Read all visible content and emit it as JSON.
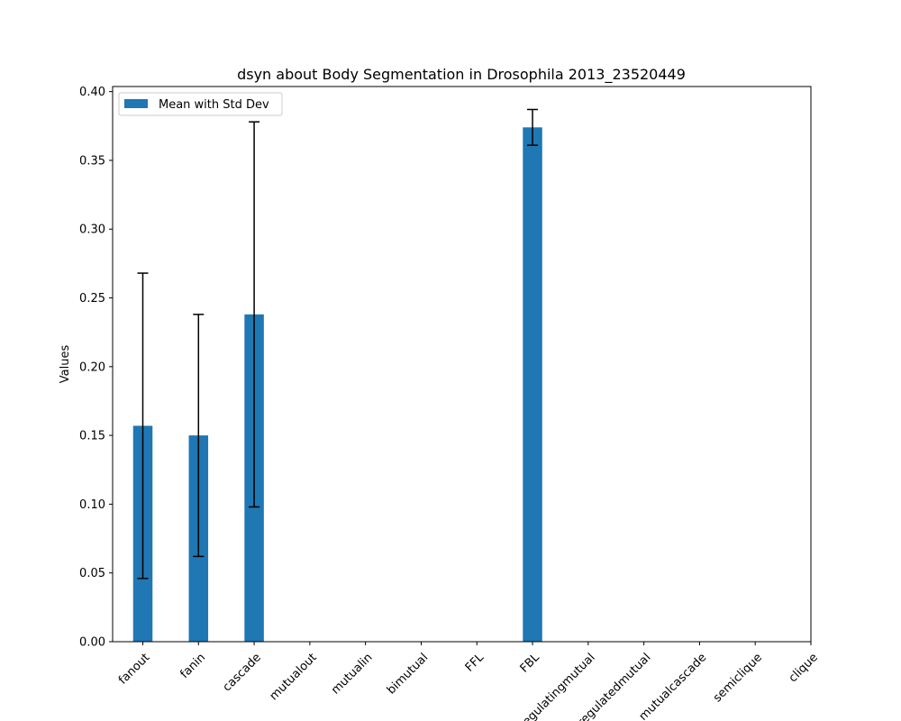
{
  "chart_data": {
    "type": "bar",
    "title": "dsyn about Body Segmentation in Drosophila 2013_23520449",
    "xlabel": "",
    "ylabel": "Values",
    "ylim": [
      0,
      0.4037
    ],
    "yticks": [
      0.0,
      0.05,
      0.1,
      0.15,
      0.2,
      0.25,
      0.3,
      0.35,
      0.4
    ],
    "ytick_labels": [
      "0.00",
      "0.05",
      "0.10",
      "0.15",
      "0.20",
      "0.25",
      "0.30",
      "0.35",
      "0.40"
    ],
    "categories": [
      "fanout",
      "fanin",
      "cascade",
      "mutualout",
      "mutualin",
      "bimutual",
      "FFL",
      "FBL",
      "regulatingmutual",
      "regulatedmutual",
      "mutualcascade",
      "semiclique",
      "clique"
    ],
    "series": [
      {
        "name": "Mean with Std Dev",
        "color": "#1f77b4",
        "values": [
          0.157,
          0.15,
          0.238,
          0,
          0,
          0,
          0,
          0.374,
          0,
          0,
          0,
          0,
          0
        ],
        "errors": [
          0.111,
          0.088,
          0.14,
          0,
          0,
          0,
          0,
          0.013,
          0,
          0,
          0,
          0,
          0
        ]
      }
    ],
    "error_bar_color": "#000000",
    "grid": false,
    "legend_position": "top-left"
  }
}
